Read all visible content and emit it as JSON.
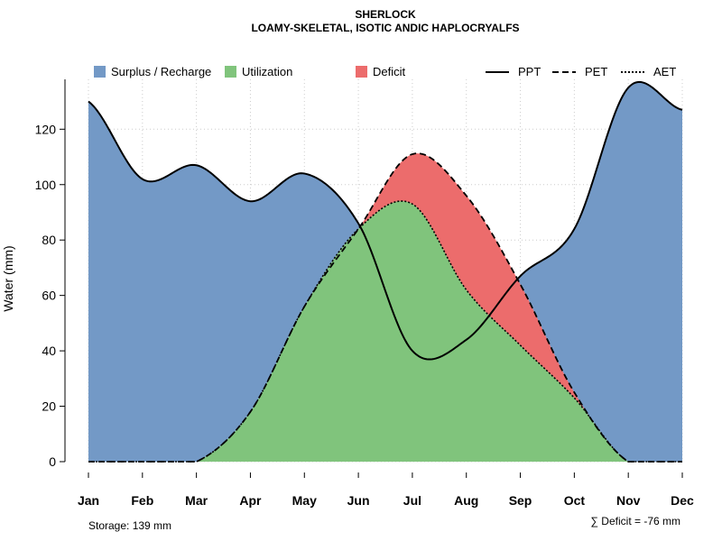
{
  "chart_data": {
    "type": "area",
    "title": "SHERLOCK",
    "subtitle": "LOAMY-SKELETAL, ISOTIC ANDIC HAPLOCRYALFS",
    "xlabel": "",
    "ylabel": "Water (mm)",
    "ylim": [
      0,
      138
    ],
    "yticks": [
      0,
      20,
      40,
      60,
      80,
      100,
      120
    ],
    "grid": true,
    "legend_position": "top",
    "categories": [
      "Jan",
      "Feb",
      "Mar",
      "Apr",
      "May",
      "Jun",
      "Jul",
      "Aug",
      "Sep",
      "Oct",
      "Nov",
      "Dec"
    ],
    "series": [
      {
        "name": "PPT",
        "style": "solid",
        "values": [
          130,
          102,
          107,
          94,
          104,
          86,
          40,
          44,
          67,
          84,
          135,
          127
        ]
      },
      {
        "name": "PET",
        "style": "dashed",
        "values": [
          0,
          0,
          0,
          18,
          56,
          84,
          111,
          96,
          64,
          25,
          0,
          0
        ]
      },
      {
        "name": "AET",
        "style": "dotted",
        "values": [
          0,
          0,
          0,
          18,
          56,
          84,
          93,
          62,
          42,
          23,
          0,
          0
        ]
      }
    ],
    "fills": [
      {
        "name": "Surplus / Recharge",
        "color": "#7399c6"
      },
      {
        "name": "Utilization",
        "color": "#80c47c"
      },
      {
        "name": "Deficit",
        "color": "#ec6c6c"
      }
    ],
    "storage_label": "Storage: 139 mm",
    "deficit_label": "∑ Deficit = -76 mm"
  }
}
